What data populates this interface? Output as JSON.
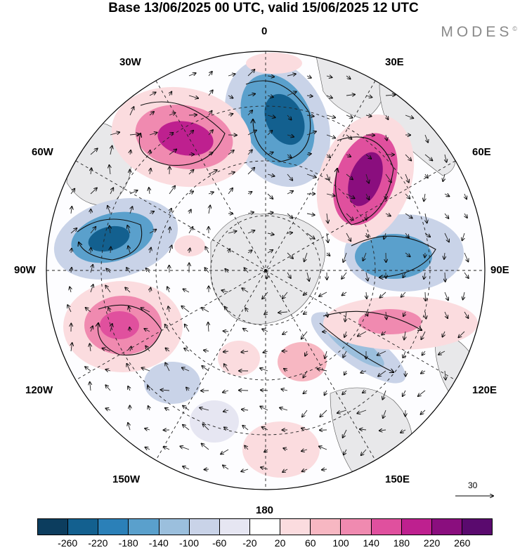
{
  "title": "Base 13/06/2025 00 UTC, valid 15/06/2025 12 UTC",
  "brand": "MODES",
  "brand_mark": "©",
  "map_labels": {
    "top": "0",
    "bottom": "180",
    "left": "90W",
    "right": "90E",
    "nw1": "30W",
    "nw2": "60W",
    "ne1": "30E",
    "ne2": "60E",
    "sw1": "120W",
    "sw2": "150W",
    "se1": "120E",
    "se2": "150E"
  },
  "reference_vector": "30",
  "colorbar": {
    "colors": [
      "#0c3d5e",
      "#13608f",
      "#2b80b8",
      "#5aa0cc",
      "#9bbfdd",
      "#c9d3e8",
      "#e6e6f2",
      "#ffffff",
      "#fbdcdf",
      "#f7b7c2",
      "#f08ab0",
      "#e0509e",
      "#be208f",
      "#8a0e7e",
      "#5a0a6e"
    ],
    "ticks": [
      "-260",
      "-220",
      "-180",
      "-140",
      "-100",
      "-60",
      "-20",
      "20",
      "60",
      "100",
      "140",
      "180",
      "220",
      "260"
    ]
  }
}
